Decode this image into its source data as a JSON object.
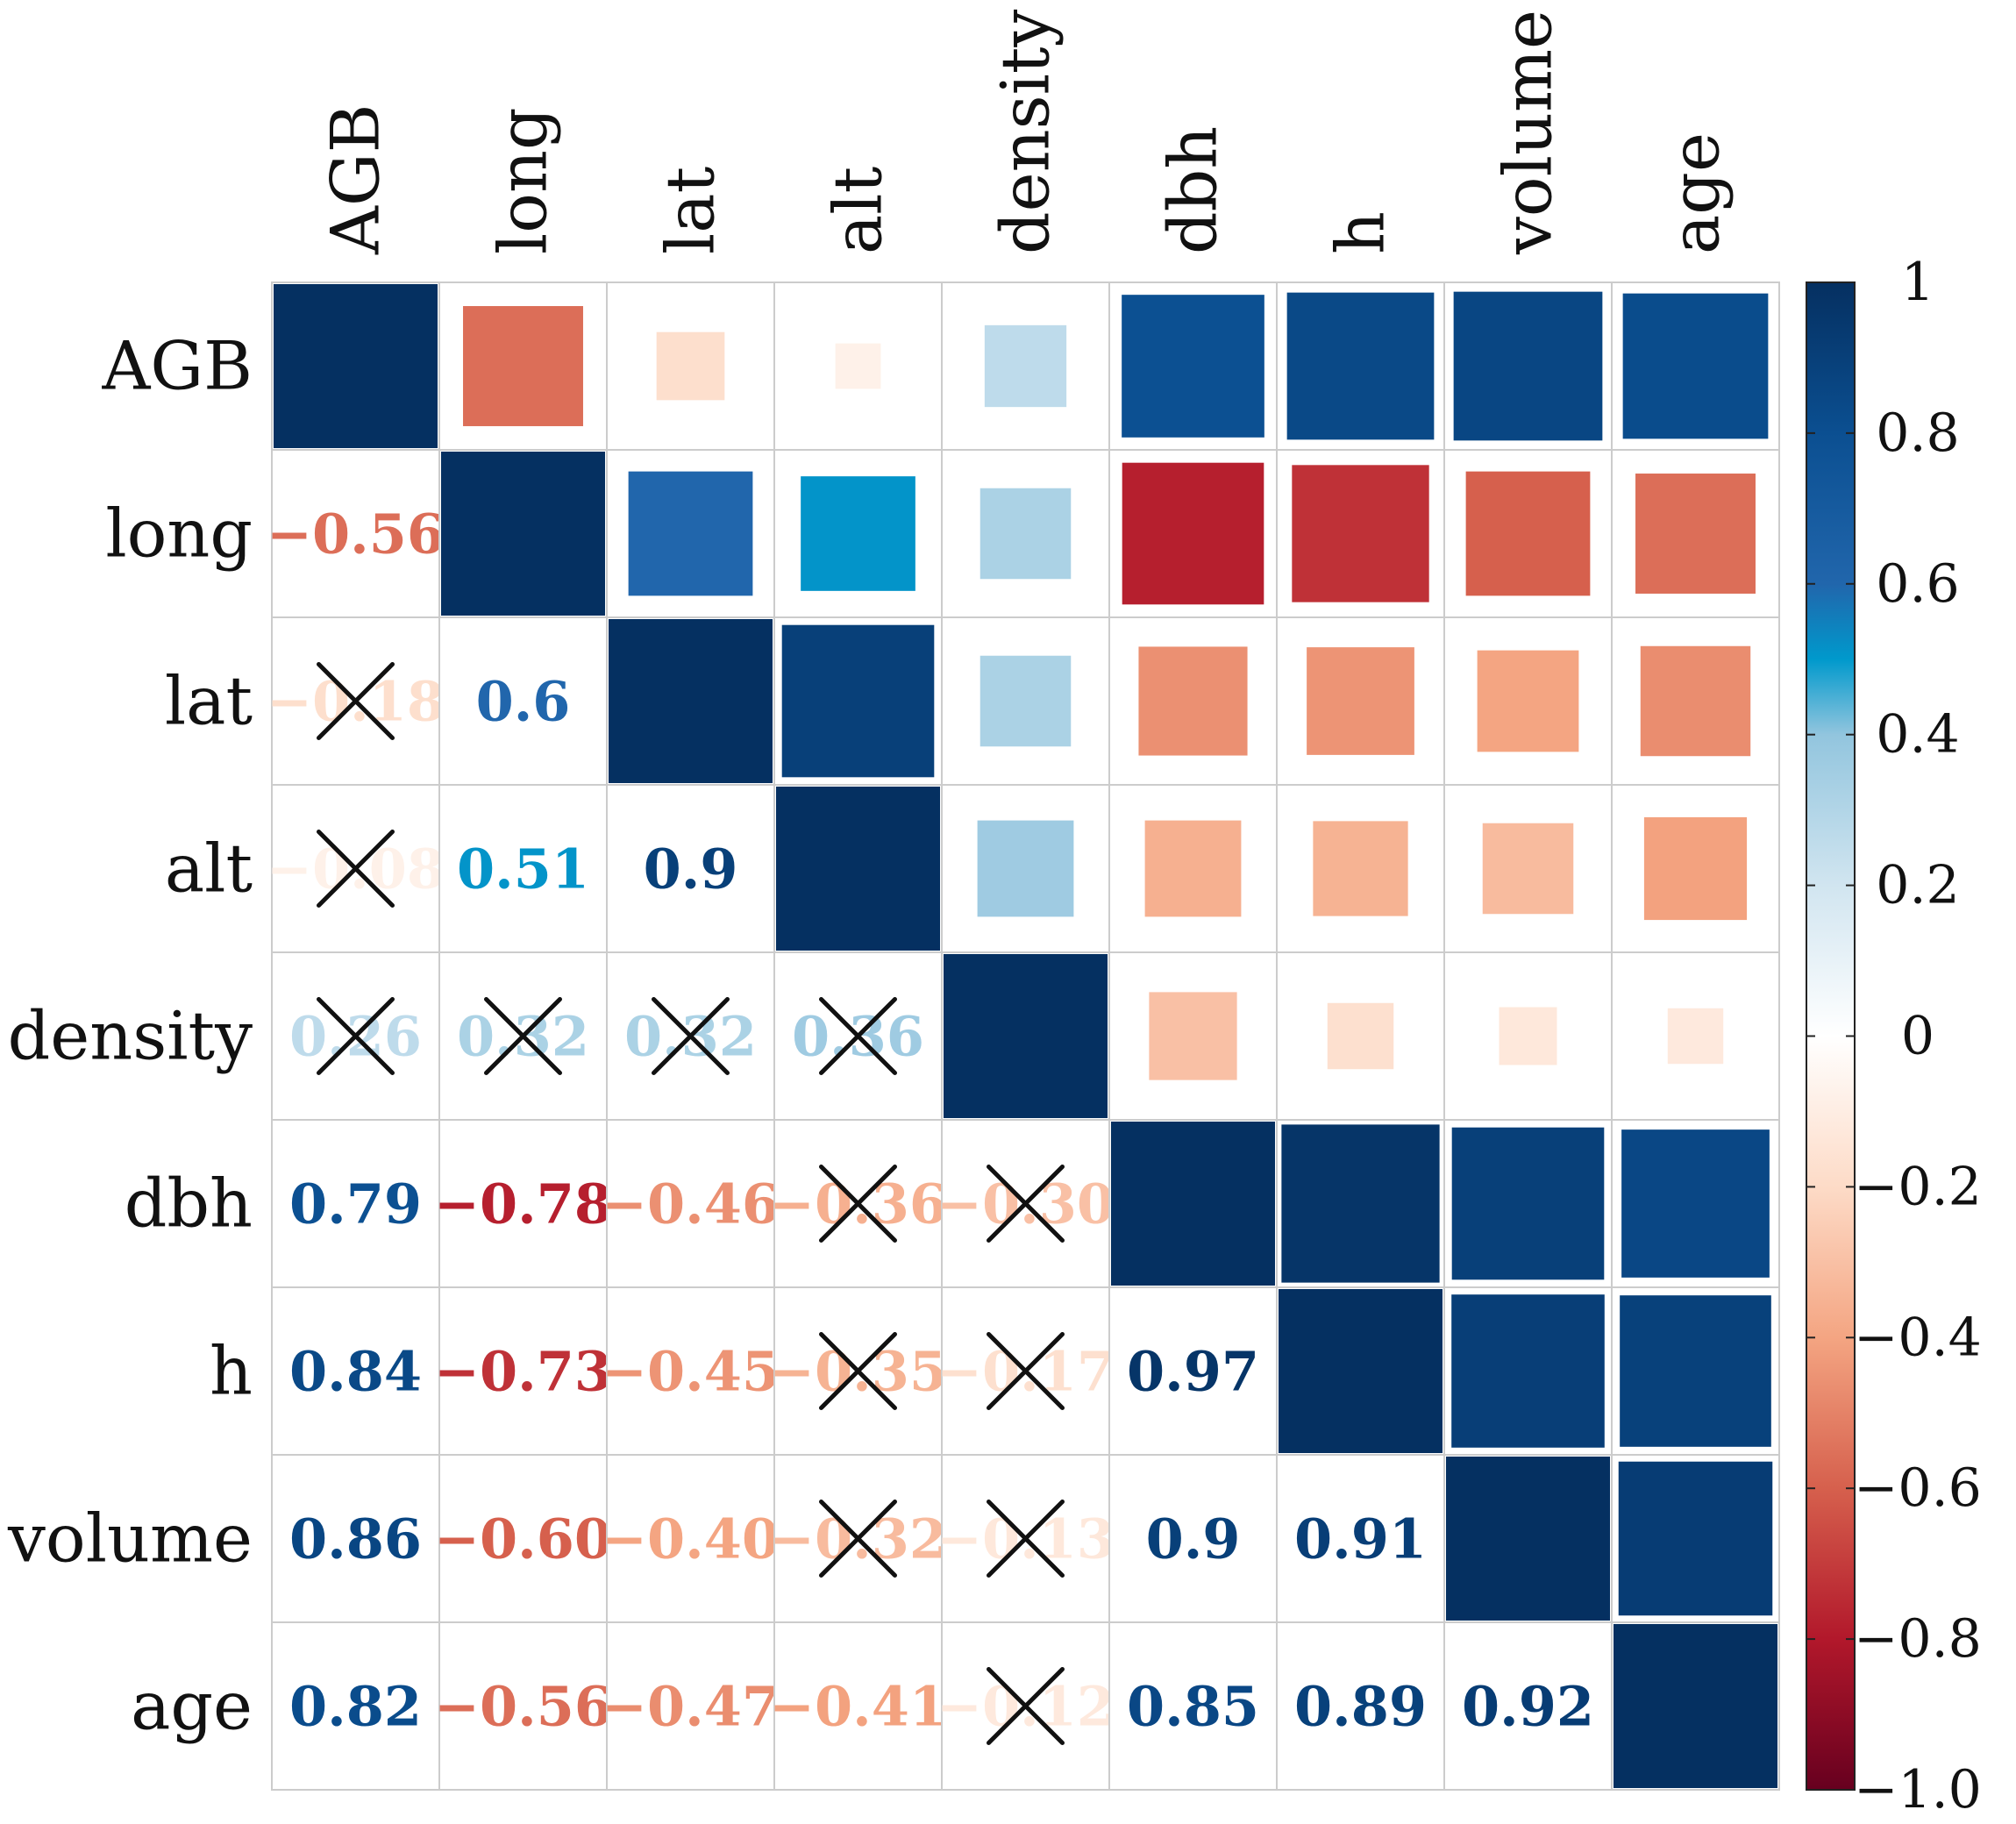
{
  "chart_data": {
    "type": "heatmap",
    "subtype": "correlation-matrix",
    "variables": [
      "AGB",
      "long",
      "lat",
      "alt",
      "density",
      "dbh",
      "h",
      "volume",
      "age"
    ],
    "upper_triangle": "squares",
    "lower_triangle": "numbers",
    "matrix": [
      [
        1.0,
        -0.56,
        -0.18,
        -0.08,
        0.26,
        0.79,
        0.84,
        0.86,
        0.82
      ],
      [
        -0.56,
        1.0,
        0.6,
        0.51,
        0.32,
        -0.78,
        -0.73,
        -0.6,
        -0.56
      ],
      [
        -0.18,
        0.6,
        1.0,
        0.9,
        0.32,
        -0.46,
        -0.45,
        -0.4,
        -0.47
      ],
      [
        -0.08,
        0.51,
        0.9,
        1.0,
        0.36,
        -0.36,
        -0.35,
        -0.32,
        -0.41
      ],
      [
        0.26,
        0.32,
        0.32,
        0.36,
        1.0,
        -0.3,
        -0.17,
        -0.13,
        -0.12
      ],
      [
        0.79,
        -0.78,
        -0.46,
        -0.36,
        -0.3,
        1.0,
        0.97,
        0.9,
        0.85
      ],
      [
        0.84,
        -0.73,
        -0.45,
        -0.35,
        -0.17,
        0.97,
        1.0,
        0.91,
        0.89
      ],
      [
        0.86,
        -0.6,
        -0.4,
        -0.32,
        -0.13,
        0.9,
        0.91,
        1.0,
        0.92
      ],
      [
        0.82,
        -0.56,
        -0.47,
        -0.41,
        -0.12,
        0.85,
        0.89,
        0.92,
        1.0
      ]
    ],
    "cell_labels": [
      [
        "",
        "",
        "",
        "",
        "",
        "",
        "",
        "",
        ""
      ],
      [
        "−0.56",
        "",
        "",
        "",
        "",
        "",
        "",
        "",
        ""
      ],
      [
        "−0.18",
        "0.6",
        "",
        "",
        "",
        "",
        "",
        "",
        ""
      ],
      [
        "−0.08",
        "0.51",
        "0.9",
        "",
        "",
        "",
        "",
        "",
        ""
      ],
      [
        "0.26",
        "0.32",
        "0.32",
        "0.36",
        "",
        "",
        "",
        "",
        ""
      ],
      [
        "0.79",
        "−0.78",
        "−0.46",
        "−0.36",
        "−0.30",
        "",
        "",
        "",
        ""
      ],
      [
        "0.84",
        "−0.73",
        "−0.45",
        "−0.35",
        "−0.17",
        "0.97",
        "",
        "",
        ""
      ],
      [
        "0.86",
        "−0.60",
        "−0.40",
        "−0.32",
        "−0.13",
        "0.9",
        "0.91",
        "",
        ""
      ],
      [
        "0.82",
        "−0.56",
        "−0.47",
        "−0.41",
        "−0.12",
        "0.85",
        "0.89",
        "0.92",
        ""
      ]
    ],
    "insignificant": [
      [
        2,
        0
      ],
      [
        3,
        0
      ],
      [
        4,
        0
      ],
      [
        4,
        1
      ],
      [
        4,
        2
      ],
      [
        4,
        3
      ],
      [
        5,
        3
      ],
      [
        5,
        4
      ],
      [
        6,
        3
      ],
      [
        6,
        4
      ],
      [
        7,
        3
      ],
      [
        7,
        4
      ],
      [
        8,
        4
      ]
    ],
    "colorbar": {
      "range": [
        -1.0,
        1.0
      ],
      "ticks": [
        1,
        0.8,
        0.6,
        0.4,
        0.2,
        0,
        -0.2,
        -0.4,
        -0.6,
        -0.8,
        -1.0
      ],
      "tick_labels": [
        "1",
        "0.8",
        "0.6",
        "0.4",
        "0.2",
        "0",
        "−0.2",
        "−0.4",
        "−0.6",
        "−0.8",
        "−1.0"
      ]
    },
    "title": "",
    "xlabel": "",
    "ylabel": ""
  }
}
